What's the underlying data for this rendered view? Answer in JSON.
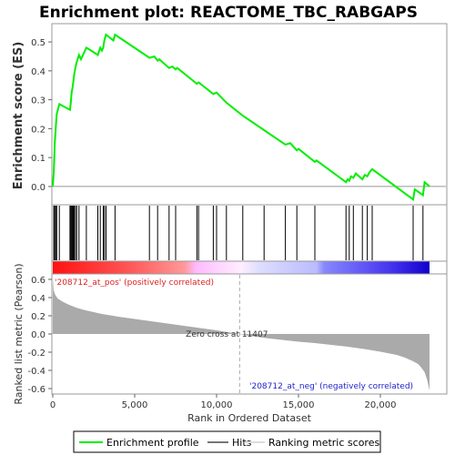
{
  "chart_data": {
    "type": "line",
    "title": "Enrichment plot: REACTOME_TBC_RABGAPS",
    "es_panel": {
      "ylabel": "Enrichment score (ES)",
      "ylim": [
        -0.06,
        0.56
      ],
      "yticks": [
        0.0,
        0.1,
        0.2,
        0.3,
        0.4,
        0.5
      ],
      "ytick_labels": [
        "0.0",
        "0.1",
        "0.2",
        "0.3",
        "0.4",
        "0.5"
      ],
      "series": [
        {
          "name": "Enrichment profile",
          "color": "#00ee00",
          "x": [
            0,
            60,
            120,
            180,
            240,
            400,
            1050,
            1100,
            1150,
            1200,
            1250,
            1300,
            1380,
            1460,
            1600,
            1720,
            2050,
            2200,
            2750,
            2900,
            3000,
            3080,
            3150,
            3250,
            3700,
            3800,
            5900,
            6200,
            6400,
            6500,
            7100,
            7300,
            7500,
            7600,
            8800,
            8900,
            9800,
            10000,
            10600,
            11600,
            12900,
            14200,
            14500,
            14900,
            15000,
            16000,
            16100,
            17900,
            18000,
            18100,
            18200,
            18350,
            18500,
            18900,
            19050,
            19200,
            19350,
            19500,
            22000,
            22100,
            22600,
            22700,
            23000
          ],
          "y": [
            0.0,
            0.05,
            0.15,
            0.2,
            0.25,
            0.285,
            0.265,
            0.29,
            0.325,
            0.34,
            0.36,
            0.385,
            0.41,
            0.43,
            0.455,
            0.44,
            0.48,
            0.475,
            0.455,
            0.48,
            0.47,
            0.48,
            0.505,
            0.525,
            0.505,
            0.525,
            0.445,
            0.45,
            0.435,
            0.44,
            0.41,
            0.415,
            0.405,
            0.41,
            0.355,
            0.36,
            0.32,
            0.325,
            0.29,
            0.245,
            0.195,
            0.145,
            0.15,
            0.125,
            0.13,
            0.085,
            0.09,
            0.015,
            0.025,
            0.02,
            0.035,
            0.03,
            0.045,
            0.025,
            0.04,
            0.035,
            0.05,
            0.06,
            -0.045,
            -0.01,
            -0.03,
            0.015,
            0.0
          ]
        }
      ]
    },
    "hits": [
      60,
      120,
      180,
      240,
      400,
      1050,
      1100,
      1150,
      1200,
      1250,
      1300,
      1380,
      1460,
      1600,
      2050,
      2750,
      2900,
      3080,
      3150,
      3250,
      3800,
      5900,
      6400,
      7100,
      7500,
      8800,
      8900,
      9800,
      10000,
      10600,
      11600,
      12900,
      14200,
      14900,
      16000,
      17900,
      18100,
      18350,
      18900,
      19200,
      19500,
      22000,
      22600
    ],
    "metric_panel": {
      "ylabel": "Ranked list metric (Pearson)",
      "ylim": [
        -0.65,
        0.65
      ],
      "yticks": [
        0.6,
        0.4,
        0.2,
        0.0,
        -0.2,
        -0.4,
        -0.6
      ],
      "ytick_labels": [
        "0.6",
        "0.4",
        "0.2",
        "0.0",
        "-0.2",
        "-0.4",
        "-0.6"
      ],
      "profile_x": [
        0,
        50,
        150,
        300,
        600,
        1000,
        1500,
        2000,
        3000,
        4000,
        5000,
        6000,
        7000,
        8000,
        9000,
        10000,
        11407,
        12000,
        13000,
        14000,
        15000,
        16000,
        17000,
        18000,
        19000,
        20000,
        21000,
        21500,
        22000,
        22300,
        22500,
        22700,
        22850,
        23000
      ],
      "profile_y": [
        0.62,
        0.48,
        0.43,
        0.39,
        0.355,
        0.32,
        0.285,
        0.26,
        0.22,
        0.19,
        0.165,
        0.14,
        0.115,
        0.09,
        0.065,
        0.04,
        0.0,
        -0.02,
        -0.045,
        -0.065,
        -0.085,
        -0.1,
        -0.12,
        -0.14,
        -0.165,
        -0.195,
        -0.23,
        -0.26,
        -0.3,
        -0.33,
        -0.37,
        -0.42,
        -0.5,
        -0.62
      ],
      "pos_label": "'208712_at_pos' (positively correlated)",
      "neg_label": "'208712_at_neg' (negatively correlated)",
      "zero_cross_label": "Zero cross at 11407",
      "zero_cross": 11407
    },
    "xaxis": {
      "xlabel": "Rank in Ordered Dataset",
      "xlim": [
        0,
        24000
      ],
      "xticks": [
        0,
        5000,
        10000,
        15000,
        20000
      ],
      "xtick_labels": [
        "0",
        "5,000",
        "10,000",
        "15,000",
        "20,000"
      ]
    },
    "legend": {
      "placement": "bottom",
      "items": [
        {
          "label": "Enrichment profile",
          "color": "#00ee00"
        },
        {
          "label": "Hits",
          "color": "#777777"
        },
        {
          "label": "Ranking metric scores",
          "color": "#dddddd"
        }
      ]
    },
    "colors": {
      "pos_text": "#dd2222",
      "neg_text": "#2222cc",
      "metric_fill": "#aaaaaa"
    }
  }
}
